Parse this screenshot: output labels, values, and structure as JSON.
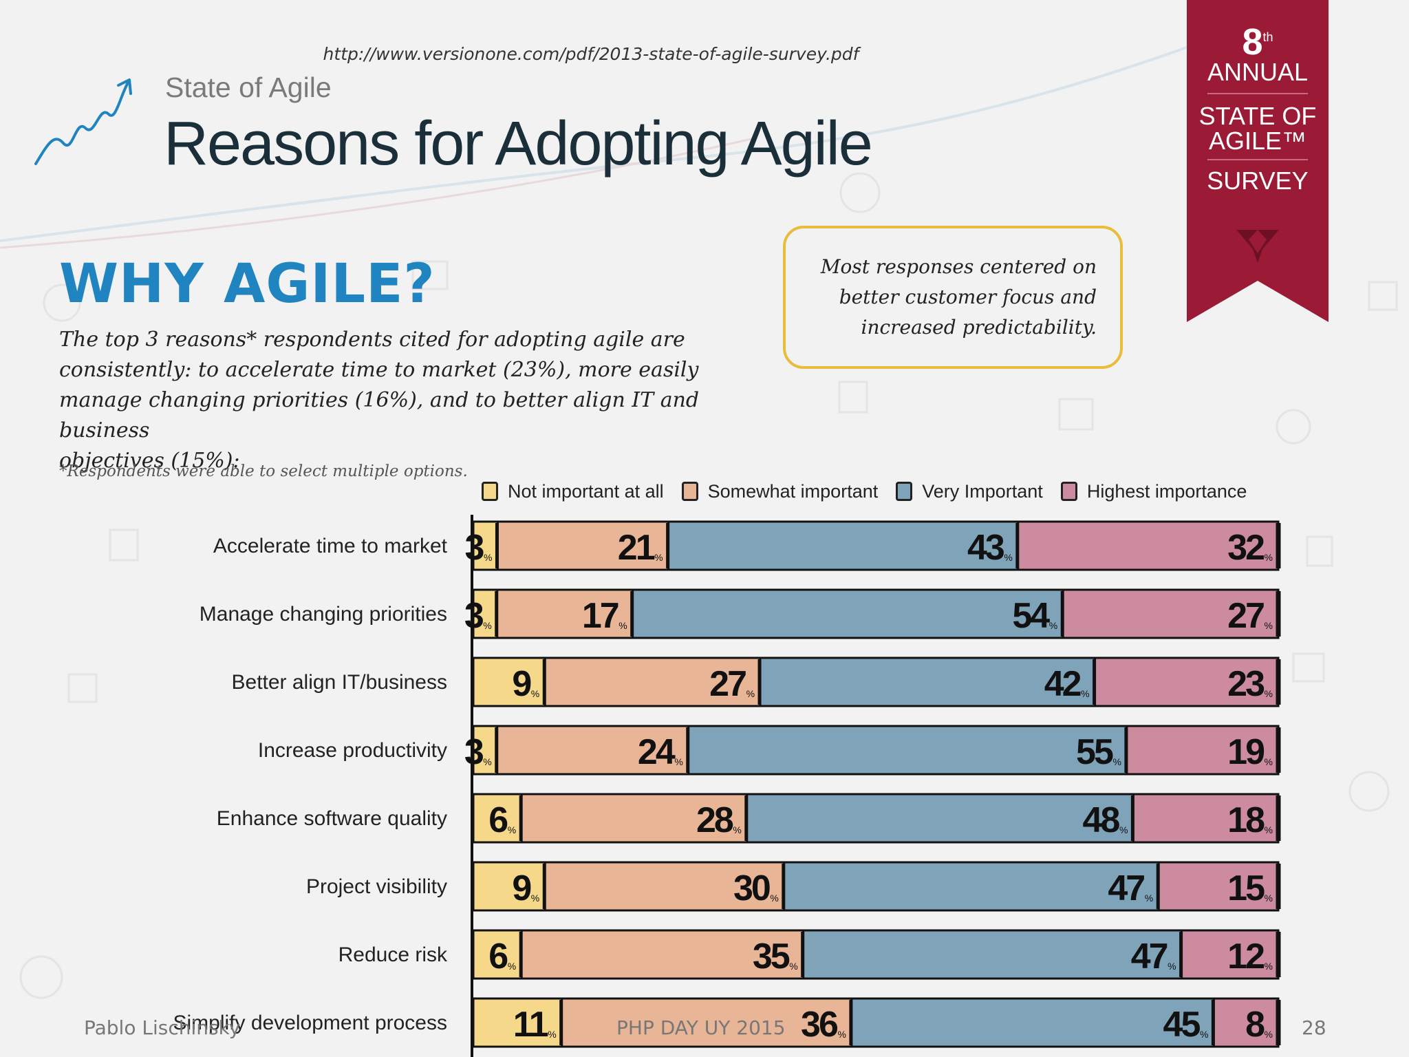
{
  "source_url": "http://www.versionone.com/pdf/2013-state-of-agile-survey.pdf",
  "header": {
    "subtitle": "State of Agile",
    "title": "Reasons for Adopting Agile"
  },
  "ribbon": {
    "number": "8",
    "superscript": "th",
    "line1": "ANNUAL",
    "line2": "STATE OF",
    "line3": "AGILE™",
    "line4": "SURVEY"
  },
  "why_title": "WHY AGILE?",
  "intro_lines": [
    "The top 3 reasons* respondents cited for adopting agile are",
    "consistently: to accelerate time to market (23%), more easily",
    "manage changing priorities (16%), and to better align IT and business",
    "objectives (15%):"
  ],
  "footnote": "*Respondents were able to select multiple options.",
  "callout_lines": [
    "Most responses centered on",
    "better customer focus and",
    "increased predictability."
  ],
  "colors": {
    "not_important": "#f6d88a",
    "somewhat": "#e9b597",
    "very": "#7fa3b8",
    "highest": "#cd8ba0",
    "ribbon": "#9b1b37",
    "title_blue": "#1f84bf",
    "callout_border": "#e8bd3a"
  },
  "chart_data": {
    "type": "bar",
    "orientation": "horizontal",
    "stacked": true,
    "unit": "%",
    "categories": [
      "Accelerate time to market",
      "Manage changing priorities",
      "Better align IT/business",
      "Increase productivity",
      "Enhance software quality",
      "Project visibility",
      "Reduce risk",
      "Simplify development process"
    ],
    "series": [
      {
        "name": "Not important at all",
        "values": [
          3,
          3,
          9,
          3,
          6,
          9,
          6,
          11
        ]
      },
      {
        "name": "Somewhat important",
        "values": [
          21,
          17,
          27,
          24,
          28,
          30,
          35,
          36
        ]
      },
      {
        "name": "Very Important",
        "values": [
          43,
          54,
          42,
          55,
          48,
          47,
          47,
          45
        ]
      },
      {
        "name": "Highest importance",
        "values": [
          32,
          27,
          23,
          19,
          18,
          15,
          12,
          8
        ]
      }
    ],
    "legend_position": "top"
  },
  "footer": {
    "author": "Pablo Lischinsky",
    "event": "PHP DAY UY 2015",
    "page": "28"
  }
}
